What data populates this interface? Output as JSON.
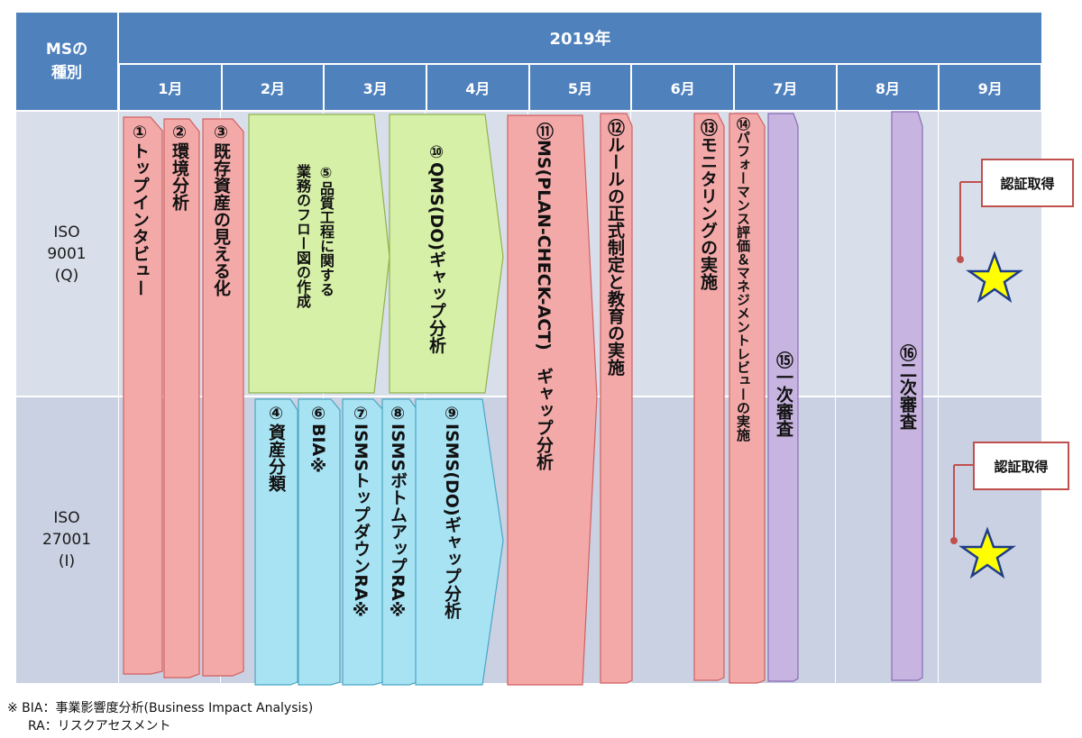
{
  "header": {
    "ms_type": "MSの\n種別",
    "year": "2019年",
    "months": [
      "1月",
      "2月",
      "3月",
      "4月",
      "5月",
      "6月",
      "7月",
      "8月",
      "9月"
    ]
  },
  "rows": [
    {
      "label": "ISO\n9001\n(Q)"
    },
    {
      "label": "ISO\n27001\n(I)"
    }
  ],
  "tasks": {
    "t1": "①トップインタビュー",
    "t2": "②環境分析",
    "t3": "③既存資産の見える化",
    "t4": "④資産分類",
    "t5a": "⑤品質工程に関する",
    "t5b": "業務のフロー図の作成",
    "t6": "⑥BIA※",
    "t7": "⑦ISMSトップダウンRA※",
    "t8": "⑧ISMSボトムアップRA※",
    "t9": "⑨ISMS(DO)ギャップ分析",
    "t10": "⑩QMS(DO)ギャップ分析",
    "t11": "⑪MS(PLAN-CHECK-ACT)　ギャップ分析",
    "t12": "⑫ルールの正式制定と教育の実施",
    "t13": "⑬モニタリングの実施",
    "t14": "⑭パフォーマンス評価＆マネジメントレビューの実施",
    "t15": "⑮一次審査",
    "t16": "⑯二次審査"
  },
  "callouts": {
    "q": "認証取得",
    "i": "認証取得"
  },
  "notes": {
    "line1": "※ BIA：事業影響度分析(Business Impact Analysis)",
    "line2": "RA：リスクアセスメント"
  },
  "colors": {
    "header": "#4f81bd",
    "row_q": "#d9dfea",
    "row_i": "#c9d1e2",
    "pink": "#f4a9a9",
    "green": "#d6f0a8",
    "cyan": "#a8e3f4",
    "purple": "#c7b4e0",
    "star": "#ffff00"
  }
}
